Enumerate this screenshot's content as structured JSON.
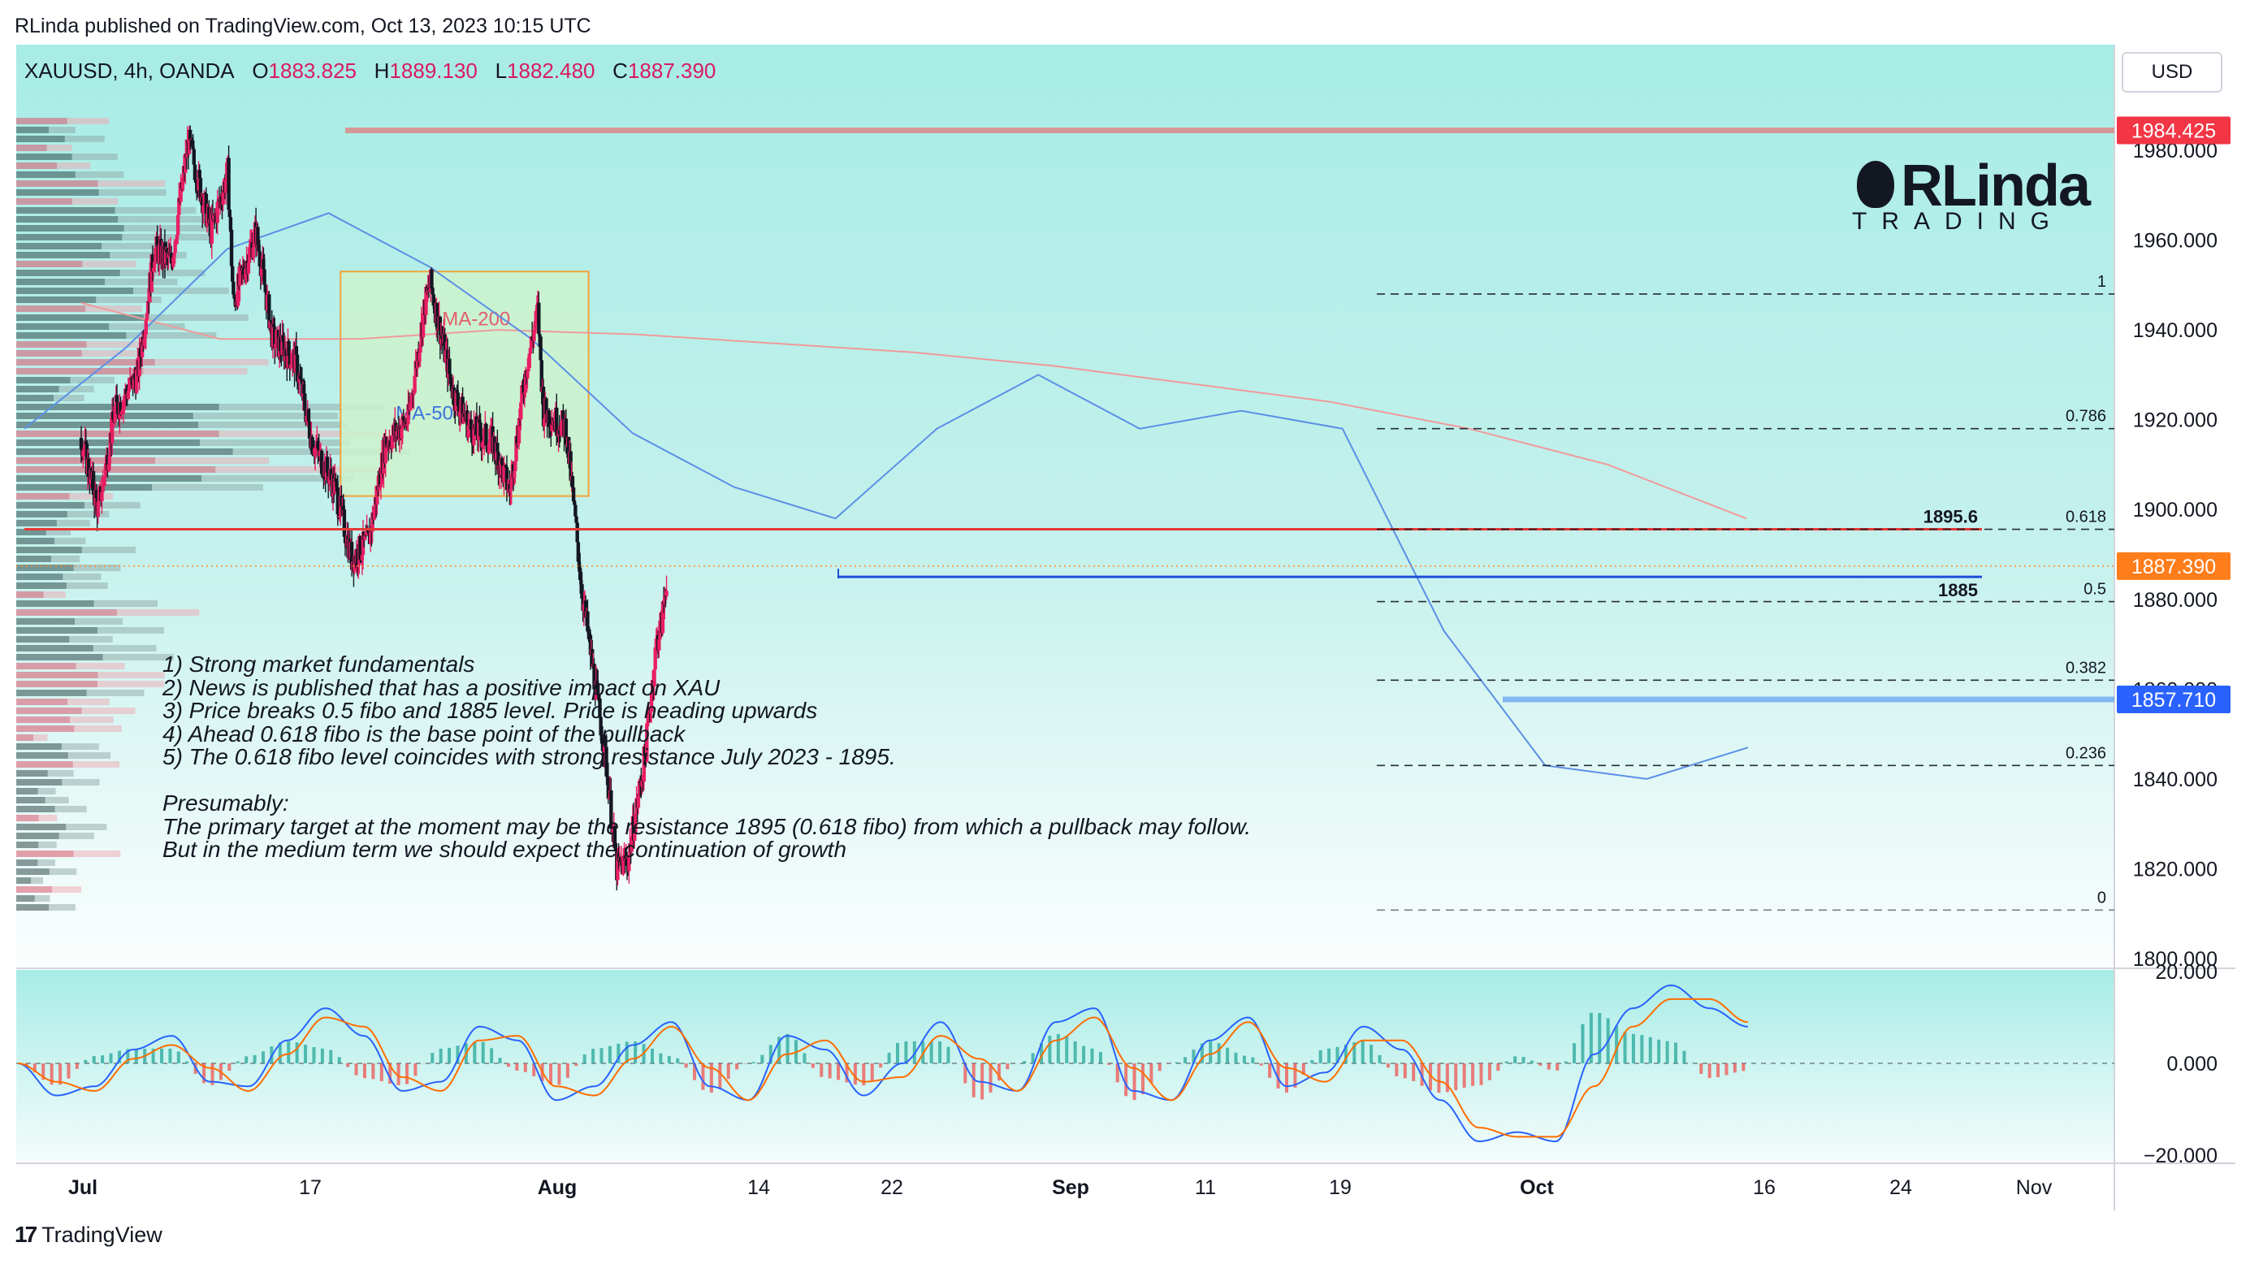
{
  "header": {
    "published": "RLinda published on TradingView.com, Oct 13, 2023 10:15 UTC"
  },
  "symbol": {
    "name": "XAUUSD, 4h, OANDA",
    "open_label": "O",
    "open": "1883.825",
    "high_label": "H",
    "high": "1889.130",
    "low_label": "L",
    "low": "1882.480",
    "close_label": "C",
    "close": "1887.390"
  },
  "currency_button": "USD",
  "brand": {
    "name": "RLinda",
    "tagline": "TRADING"
  },
  "footer": {
    "logo_text": "TradingView",
    "logo_mark": "17"
  },
  "annotations": {
    "notes": [
      "1) Strong market fundamentals",
      "2) News is published that has a positive impact on XAU",
      "3) Price breaks 0.5 fibo and 1885 level. Price is heading upwards",
      "4) Ahead 0.618 fibo is the base point of the pullback",
      "5) The 0.618 fibo level coincides with strong resistance July 2023 - 1895.",
      "",
      "Presumably:",
      "The primary target at the moment may be the resistance 1895 (0.618 fibo) from which a pullback may follow.",
      "But in the medium term we should expect the continuation of growth"
    ],
    "ma200_label": "MA-200",
    "ma50_label": "MA-50",
    "level_1895_label": "1895.6",
    "level_1885_label": "1885"
  },
  "colors": {
    "bg_top": "#a8ece6",
    "bg_bottom": "#ffffff",
    "up_candle": "#e91e63",
    "down_candle": "#131722",
    "ma200": "#f09a9a",
    "ma50": "#5b8fe6",
    "resistance": "#e53935",
    "support": "#1e4fd8",
    "zone_fill": "#cdf2cc",
    "zone_border": "#f2a33a",
    "price_last": "#ff8a1f",
    "top_level": "#f05252",
    "mid_level": "#4f8ff0",
    "macd": "#2962ff",
    "signal": "#ff6d00",
    "hist_up": "#26a69a",
    "hist_down": "#ef5350"
  },
  "chart_data": [
    {
      "type": "candlestick",
      "symbol": "XAUUSD",
      "timeframe": "4h",
      "y_axis": {
        "ylim": [
          1800,
          1990
        ],
        "ticks": [
          1800,
          1820,
          1840,
          1860,
          1880,
          1900,
          1920,
          1940,
          1960,
          1980
        ],
        "labels": [
          "1800.000",
          "1820.000",
          "1840.000",
          "1860.000",
          "1880.000",
          "1900.000",
          "1920.000",
          "1940.000",
          "1960.000",
          "1980.000"
        ]
      },
      "x_axis": {
        "labels": [
          "Jul",
          "17",
          "Aug",
          "14",
          "22",
          "Sep",
          "11",
          "19",
          "Oct",
          "16",
          "24",
          "Nov"
        ]
      },
      "price_path": [
        {
          "x": "Jul 1",
          "y": 1916
        },
        {
          "x": "Jul 4",
          "y": 1900
        },
        {
          "x": "Jul 7",
          "y": 1922
        },
        {
          "x": "Jul 11",
          "y": 1930
        },
        {
          "x": "Jul 14",
          "y": 1958
        },
        {
          "x": "Jul 17",
          "y": 1955
        },
        {
          "x": "Jul 20",
          "y": 1982
        },
        {
          "x": "Jul 24",
          "y": 1962
        },
        {
          "x": "Jul 27",
          "y": 1975
        },
        {
          "x": "Jul 28",
          "y": 1946
        },
        {
          "x": "Aug 1",
          "y": 1962
        },
        {
          "x": "Aug 4",
          "y": 1938
        },
        {
          "x": "Aug 8",
          "y": 1933
        },
        {
          "x": "Aug 11",
          "y": 1915
        },
        {
          "x": "Aug 15",
          "y": 1905
        },
        {
          "x": "Aug 18",
          "y": 1889
        },
        {
          "x": "Aug 21",
          "y": 1893
        },
        {
          "x": "Aug 24",
          "y": 1915
        },
        {
          "x": "Aug 28",
          "y": 1920
        },
        {
          "x": "Aug 31",
          "y": 1946
        },
        {
          "x": "Sep 1",
          "y": 1950
        },
        {
          "x": "Sep 5",
          "y": 1926
        },
        {
          "x": "Sep 8",
          "y": 1918
        },
        {
          "x": "Sep 12",
          "y": 1915
        },
        {
          "x": "Sep 15",
          "y": 1904
        },
        {
          "x": "Sep 18",
          "y": 1932
        },
        {
          "x": "Sep 20",
          "y": 1944
        },
        {
          "x": "Sep 21",
          "y": 1922
        },
        {
          "x": "Sep 25",
          "y": 1918
        },
        {
          "x": "Sep 28",
          "y": 1880
        },
        {
          "x": "Oct 2",
          "y": 1845
        },
        {
          "x": "Oct 4",
          "y": 1820
        },
        {
          "x": "Oct 6",
          "y": 1822
        },
        {
          "x": "Oct 9",
          "y": 1845
        },
        {
          "x": "Oct 11",
          "y": 1870
        },
        {
          "x": "Oct 12",
          "y": 1875
        },
        {
          "x": "Oct 13",
          "y": 1887
        }
      ],
      "ma200_path": [
        1946,
        1938,
        1938,
        1940,
        1939,
        1937,
        1935,
        1932,
        1928,
        1924,
        1918,
        1910,
        1898
      ],
      "ma50_path": [
        1918,
        1936,
        1958,
        1966,
        1954,
        1938,
        1917,
        1905,
        1898,
        1918,
        1930,
        1918,
        1922,
        1918,
        1873,
        1843,
        1840,
        1847
      ],
      "levels": [
        {
          "name": "resistance",
          "value": 1895.6,
          "label": "1895.6"
        },
        {
          "name": "support",
          "value": 1885,
          "label": "1885"
        },
        {
          "name": "top",
          "value": 1984.425,
          "label": "1984.425"
        },
        {
          "name": "last_price",
          "value": 1887.39,
          "label": "1887.390"
        },
        {
          "name": "mid",
          "value": 1857.71,
          "label": "1857.710"
        }
      ],
      "zone": {
        "from": "Aug 16",
        "to": "Sep 29",
        "low": 1903,
        "high": 1953
      },
      "fibonacci": [
        {
          "ratio": "1",
          "value": 1948
        },
        {
          "ratio": "0.786",
          "value": 1918
        },
        {
          "ratio": "0.618",
          "value": 1895.6
        },
        {
          "ratio": "0.5",
          "value": 1879.5
        },
        {
          "ratio": "0.382",
          "value": 1862
        },
        {
          "ratio": "0.236",
          "value": 1843
        },
        {
          "ratio": "0",
          "value": 1810.8
        }
      ]
    },
    {
      "type": "line",
      "name": "MACD",
      "y_axis": {
        "ylim": [
          -20,
          20
        ],
        "ticks": [
          20,
          0,
          -20
        ],
        "labels": [
          "20.000",
          "0.000",
          "−20.000"
        ]
      },
      "macd_path": [
        0,
        -7,
        -5,
        3,
        6,
        -4,
        -5,
        5,
        12,
        6,
        -6,
        -4,
        8,
        5,
        -8,
        -5,
        4,
        9,
        -5,
        -8,
        6,
        3,
        -7,
        0,
        9,
        -4,
        -6,
        9,
        12,
        -6,
        -8,
        5,
        10,
        -5,
        -2,
        8,
        3,
        -8,
        -17,
        -15,
        -17,
        2,
        12,
        17,
        12,
        8
      ],
      "signal_path": [
        0,
        -4,
        -6,
        1,
        4,
        -1,
        -6,
        2,
        10,
        8,
        -3,
        -6,
        5,
        6,
        -5,
        -7,
        1,
        8,
        -1,
        -8,
        2,
        5,
        -4,
        -3,
        6,
        1,
        -6,
        5,
        10,
        -1,
        -8,
        2,
        9,
        -1,
        -4,
        5,
        5,
        -4,
        -14,
        -16,
        -16,
        -5,
        8,
        14,
        14,
        9
      ],
      "histogram_sign_pattern": "oscillating"
    }
  ]
}
